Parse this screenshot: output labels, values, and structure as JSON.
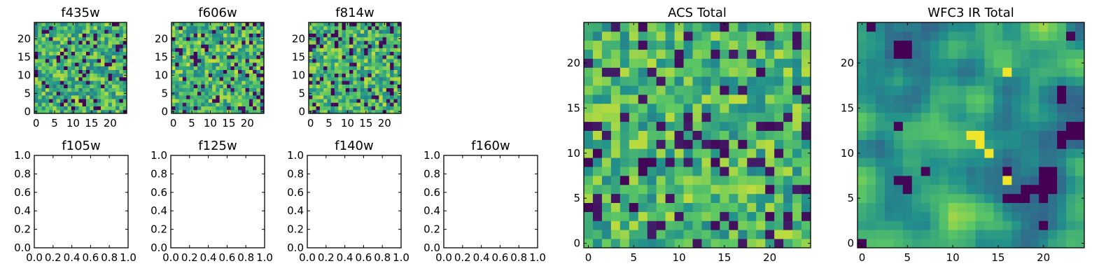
{
  "colormap": {
    "name": "viridis",
    "stops": [
      "#440154",
      "#3b528b",
      "#21918c",
      "#5ec962",
      "#fde725"
    ]
  },
  "chart_data": [
    {
      "type": "heatmap",
      "id": "f435w",
      "title": "f435w",
      "grid_size": 25,
      "xlim": [
        -0.5,
        24.5
      ],
      "ylim": [
        -0.5,
        24.5
      ],
      "xticks": [
        0,
        5,
        10,
        15,
        20
      ],
      "yticks": [
        0,
        5,
        10,
        15,
        20
      ],
      "appearance": "fine noisy texture, mostly green/yellow with scattered teal, blue and purple pixels",
      "texture": {
        "seed": 435,
        "smooth": 0,
        "bias": 0.62,
        "spread": 0.28
      }
    },
    {
      "type": "heatmap",
      "id": "f606w",
      "title": "f606w",
      "grid_size": 25,
      "xlim": [
        -0.5,
        24.5
      ],
      "ylim": [
        -0.5,
        24.5
      ],
      "xticks": [
        0,
        5,
        10,
        15,
        20
      ],
      "yticks": [
        0,
        5,
        10,
        15,
        20
      ],
      "appearance": "fine noisy texture, mostly green/yellow with scattered teal and purple pixels",
      "texture": {
        "seed": 606,
        "smooth": 0,
        "bias": 0.64,
        "spread": 0.28
      }
    },
    {
      "type": "heatmap",
      "id": "f814w",
      "title": "f814w",
      "grid_size": 25,
      "xlim": [
        -0.5,
        24.5
      ],
      "ylim": [
        -0.5,
        24.5
      ],
      "xticks": [
        0,
        5,
        10,
        15,
        20
      ],
      "yticks": [
        0,
        5,
        10,
        15,
        20
      ],
      "appearance": "fine noisy texture, mostly green/yellow with scattered teal and purple pixels",
      "texture": {
        "seed": 814,
        "smooth": 0,
        "bias": 0.63,
        "spread": 0.28
      }
    },
    {
      "type": "empty",
      "id": "f105w",
      "title": "f105w",
      "xlim": [
        0,
        1
      ],
      "ylim": [
        0,
        1
      ],
      "xtick_labels": [
        "0.0",
        "0.2",
        "0.4",
        "0.6",
        "0.8",
        "1.0"
      ],
      "ytick_labels": [
        "0.0",
        "0.2",
        "0.4",
        "0.6",
        "0.8",
        "1.0"
      ]
    },
    {
      "type": "empty",
      "id": "f125w",
      "title": "f125w",
      "xlim": [
        0,
        1
      ],
      "ylim": [
        0,
        1
      ],
      "xtick_labels": [
        "0.0",
        "0.2",
        "0.4",
        "0.6",
        "0.8",
        "1.0"
      ],
      "ytick_labels": [
        "0.0",
        "0.2",
        "0.4",
        "0.6",
        "0.8",
        "1.0"
      ]
    },
    {
      "type": "empty",
      "id": "f140w",
      "title": "f140w",
      "xlim": [
        0,
        1
      ],
      "ylim": [
        0,
        1
      ],
      "xtick_labels": [
        "0.0",
        "0.2",
        "0.4",
        "0.6",
        "0.8",
        "1.0"
      ],
      "ytick_labels": [
        "0.0",
        "0.2",
        "0.4",
        "0.6",
        "0.8",
        "1.0"
      ]
    },
    {
      "type": "empty",
      "id": "f160w",
      "title": "f160w",
      "xlim": [
        0,
        1
      ],
      "ylim": [
        0,
        1
      ],
      "xtick_labels": [
        "0.0",
        "0.2",
        "0.4",
        "0.6",
        "0.8",
        "1.0"
      ],
      "ytick_labels": [
        "0.0",
        "0.2",
        "0.4",
        "0.6",
        "0.8",
        "1.0"
      ]
    },
    {
      "type": "heatmap",
      "id": "acs_total",
      "title": "ACS Total",
      "grid_size": 25,
      "xlim": [
        -0.5,
        24.5
      ],
      "ylim": [
        -0.5,
        24.5
      ],
      "xticks": [
        0,
        5,
        10,
        15,
        20
      ],
      "yticks": [
        0,
        5,
        10,
        15,
        20
      ],
      "appearance": "noisy texture, mostly green/yellow, darker purple patches in lower-left quadrant near rows 8-10",
      "texture": {
        "seed": 1234,
        "smooth": 0,
        "bias": 0.64,
        "spread": 0.26,
        "dark_spots": [
          [
            6,
            9
          ],
          [
            7,
            9
          ],
          [
            6,
            8
          ],
          [
            4,
            7
          ],
          [
            0,
            9
          ],
          [
            1,
            10
          ],
          [
            0,
            4
          ],
          [
            5,
            4
          ]
        ]
      }
    },
    {
      "type": "heatmap",
      "id": "wfc3_ir_total",
      "title": "WFC3 IR Total",
      "grid_size": 25,
      "xlim": [
        -0.5,
        24.5
      ],
      "ylim": [
        -0.5,
        24.5
      ],
      "xticks": [
        0,
        5,
        10,
        15,
        20
      ],
      "yticks": [
        0,
        5,
        10,
        15,
        20
      ],
      "appearance": "smoother texture, darker teal/purple on left half, bright yellow patches center-right around x=12-14, y=10-13",
      "texture": {
        "seed": 777,
        "smooth": 2,
        "bias": 0.55,
        "spread": 0.3,
        "dark_spots": [
          [
            4,
            7
          ],
          [
            5,
            7
          ],
          [
            5,
            6
          ],
          [
            7,
            8
          ],
          [
            4,
            13
          ],
          [
            1,
            24
          ],
          [
            23,
            23
          ],
          [
            0,
            0
          ]
        ],
        "bright_spots": [
          [
            13,
            11
          ],
          [
            12,
            12
          ],
          [
            14,
            10
          ],
          [
            13,
            12
          ],
          [
            16,
            7
          ],
          [
            16,
            19
          ]
        ]
      }
    }
  ]
}
